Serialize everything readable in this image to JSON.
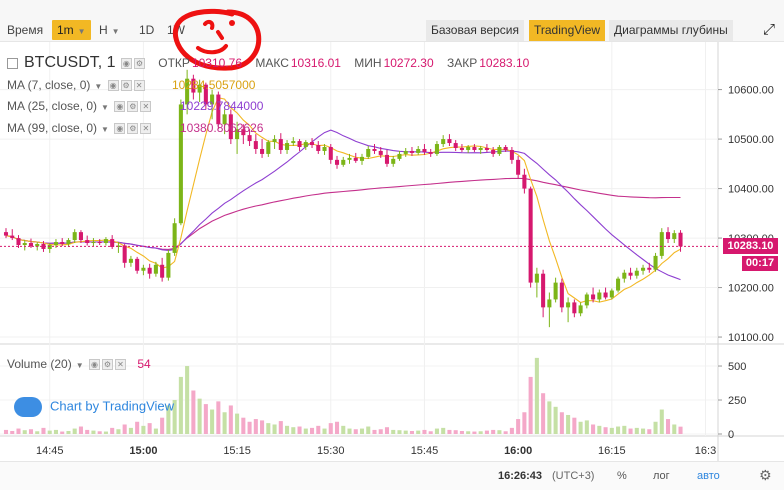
{
  "toolbar": {
    "time_label": "Время",
    "interval": "1m",
    "chart_style": "H",
    "range_1d": "1D",
    "range_1w": "1W",
    "basic_version": "Базовая версия",
    "tradingview": "TradingView",
    "depth_charts": "Диаграммы глубины"
  },
  "legend": {
    "symbol": "BTCUSDT, 1",
    "open_label": "ОТКР",
    "open_value": "10310.76",
    "high_label": "МАКС",
    "high_value": "10316.01",
    "low_label": "МИН",
    "low_value": "10272.30",
    "close_label": "ЗАКР",
    "close_value": "10283.10"
  },
  "ma": [
    {
      "label": "MA (7, close, 0)",
      "value": "10284.5057000",
      "color": "#f2b824"
    },
    {
      "label": "MA (25, close, 0)",
      "value": "10229.7844000",
      "color": "#8e3fd1"
    },
    {
      "label": "MA (99, close, 0)",
      "value": "10380.8062626",
      "color": "#c4308c"
    }
  ],
  "badges": {
    "price": "10283.10",
    "countdown": "00:17"
  },
  "volume_legend": {
    "label": "Volume (20)",
    "value": "54"
  },
  "watermark": "Chart by TradingView",
  "bottom": {
    "clock": "16:26:43",
    "timezone": "(UTC+3)",
    "percent": "%",
    "log": "лог",
    "auto": "авто"
  },
  "colors": {
    "up": "#7cb518",
    "down": "#d6186e",
    "vol_up": "#c5e0a5",
    "vol_down": "#f4a8c8"
  },
  "chart_data": {
    "type": "candlestick",
    "interval": "1m",
    "price_axis": {
      "ticks": [
        10100,
        10200,
        10300,
        10400,
        10500,
        10600
      ],
      "range": [
        10090,
        10680
      ]
    },
    "volume_axis": {
      "ticks": [
        0,
        250,
        500
      ],
      "range": [
        0,
        640
      ]
    },
    "time_axis": {
      "ticks": [
        "14:45",
        "15:00",
        "15:15",
        "15:30",
        "15:45",
        "16:00",
        "16:15",
        "16:3"
      ],
      "start": "14:38",
      "end": "16:32"
    },
    "last_price": 10283.1,
    "candles": [
      {
        "t": "14:38",
        "o": 10312,
        "h": 10320,
        "l": 10300,
        "c": 10305,
        "v": 30
      },
      {
        "t": "14:39",
        "o": 10305,
        "h": 10318,
        "l": 10296,
        "c": 10300,
        "v": 22
      },
      {
        "t": "14:40",
        "o": 10300,
        "h": 10306,
        "l": 10280,
        "c": 10286,
        "v": 40
      },
      {
        "t": "14:41",
        "o": 10286,
        "h": 10296,
        "l": 10275,
        "c": 10290,
        "v": 28
      },
      {
        "t": "14:42",
        "o": 10290,
        "h": 10299,
        "l": 10280,
        "c": 10283,
        "v": 35
      },
      {
        "t": "14:43",
        "o": 10283,
        "h": 10292,
        "l": 10275,
        "c": 10288,
        "v": 20
      },
      {
        "t": "14:44",
        "o": 10288,
        "h": 10294,
        "l": 10272,
        "c": 10278,
        "v": 45
      },
      {
        "t": "14:45",
        "o": 10278,
        "h": 10290,
        "l": 10270,
        "c": 10286,
        "v": 25
      },
      {
        "t": "14:46",
        "o": 10286,
        "h": 10298,
        "l": 10280,
        "c": 10292,
        "v": 30
      },
      {
        "t": "14:47",
        "o": 10292,
        "h": 10300,
        "l": 10284,
        "c": 10288,
        "v": 18
      },
      {
        "t": "14:48",
        "o": 10288,
        "h": 10300,
        "l": 10282,
        "c": 10296,
        "v": 22
      },
      {
        "t": "14:49",
        "o": 10296,
        "h": 10318,
        "l": 10290,
        "c": 10312,
        "v": 40
      },
      {
        "t": "14:50",
        "o": 10312,
        "h": 10316,
        "l": 10290,
        "c": 10296,
        "v": 55
      },
      {
        "t": "14:51",
        "o": 10296,
        "h": 10305,
        "l": 10285,
        "c": 10290,
        "v": 30
      },
      {
        "t": "14:52",
        "o": 10290,
        "h": 10300,
        "l": 10283,
        "c": 10292,
        "v": 25
      },
      {
        "t": "14:53",
        "o": 10292,
        "h": 10298,
        "l": 10286,
        "c": 10290,
        "v": 20
      },
      {
        "t": "14:54",
        "o": 10290,
        "h": 10302,
        "l": 10285,
        "c": 10298,
        "v": 18
      },
      {
        "t": "14:55",
        "o": 10298,
        "h": 10306,
        "l": 10278,
        "c": 10282,
        "v": 45
      },
      {
        "t": "14:56",
        "o": 10282,
        "h": 10292,
        "l": 10270,
        "c": 10285,
        "v": 35
      },
      {
        "t": "14:57",
        "o": 10285,
        "h": 10288,
        "l": 10240,
        "c": 10250,
        "v": 70
      },
      {
        "t": "14:58",
        "o": 10250,
        "h": 10264,
        "l": 10242,
        "c": 10258,
        "v": 45
      },
      {
        "t": "14:59",
        "o": 10258,
        "h": 10262,
        "l": 10228,
        "c": 10234,
        "v": 90
      },
      {
        "t": "15:00",
        "o": 10234,
        "h": 10246,
        "l": 10225,
        "c": 10240,
        "v": 60
      },
      {
        "t": "15:01",
        "o": 10240,
        "h": 10248,
        "l": 10218,
        "c": 10228,
        "v": 80
      },
      {
        "t": "15:02",
        "o": 10228,
        "h": 10252,
        "l": 10222,
        "c": 10246,
        "v": 40
      },
      {
        "t": "15:03",
        "o": 10246,
        "h": 10260,
        "l": 10212,
        "c": 10220,
        "v": 120
      },
      {
        "t": "15:04",
        "o": 10220,
        "h": 10276,
        "l": 10214,
        "c": 10270,
        "v": 210
      },
      {
        "t": "15:05",
        "o": 10270,
        "h": 10340,
        "l": 10264,
        "c": 10330,
        "v": 250
      },
      {
        "t": "15:06",
        "o": 10330,
        "h": 10580,
        "l": 10326,
        "c": 10570,
        "v": 420
      },
      {
        "t": "15:07",
        "o": 10570,
        "h": 10640,
        "l": 10550,
        "c": 10622,
        "v": 500
      },
      {
        "t": "15:08",
        "o": 10622,
        "h": 10630,
        "l": 10580,
        "c": 10594,
        "v": 320
      },
      {
        "t": "15:09",
        "o": 10594,
        "h": 10620,
        "l": 10575,
        "c": 10610,
        "v": 260
      },
      {
        "t": "15:10",
        "o": 10610,
        "h": 10614,
        "l": 10560,
        "c": 10570,
        "v": 220
      },
      {
        "t": "15:11",
        "o": 10570,
        "h": 10600,
        "l": 10540,
        "c": 10590,
        "v": 180
      },
      {
        "t": "15:12",
        "o": 10590,
        "h": 10596,
        "l": 10520,
        "c": 10530,
        "v": 240
      },
      {
        "t": "15:13",
        "o": 10530,
        "h": 10560,
        "l": 10510,
        "c": 10550,
        "v": 160
      },
      {
        "t": "15:14",
        "o": 10550,
        "h": 10560,
        "l": 10490,
        "c": 10500,
        "v": 210
      },
      {
        "t": "15:15",
        "o": 10500,
        "h": 10535,
        "l": 10470,
        "c": 10520,
        "v": 150
      },
      {
        "t": "15:16",
        "o": 10520,
        "h": 10530,
        "l": 10490,
        "c": 10508,
        "v": 120
      },
      {
        "t": "15:17",
        "o": 10508,
        "h": 10520,
        "l": 10486,
        "c": 10496,
        "v": 90
      },
      {
        "t": "15:18",
        "o": 10496,
        "h": 10510,
        "l": 10470,
        "c": 10480,
        "v": 110
      },
      {
        "t": "15:19",
        "o": 10480,
        "h": 10500,
        "l": 10462,
        "c": 10470,
        "v": 100
      },
      {
        "t": "15:20",
        "o": 10470,
        "h": 10498,
        "l": 10464,
        "c": 10494,
        "v": 80
      },
      {
        "t": "15:21",
        "o": 10494,
        "h": 10508,
        "l": 10480,
        "c": 10500,
        "v": 70
      },
      {
        "t": "15:22",
        "o": 10500,
        "h": 10512,
        "l": 10470,
        "c": 10478,
        "v": 95
      },
      {
        "t": "15:23",
        "o": 10478,
        "h": 10498,
        "l": 10470,
        "c": 10492,
        "v": 60
      },
      {
        "t": "15:24",
        "o": 10492,
        "h": 10504,
        "l": 10486,
        "c": 10496,
        "v": 50
      },
      {
        "t": "15:25",
        "o": 10496,
        "h": 10500,
        "l": 10476,
        "c": 10484,
        "v": 55
      },
      {
        "t": "15:26",
        "o": 10484,
        "h": 10498,
        "l": 10478,
        "c": 10494,
        "v": 40
      },
      {
        "t": "15:27",
        "o": 10494,
        "h": 10502,
        "l": 10482,
        "c": 10488,
        "v": 45
      },
      {
        "t": "15:28",
        "o": 10488,
        "h": 10496,
        "l": 10470,
        "c": 10476,
        "v": 60
      },
      {
        "t": "15:29",
        "o": 10476,
        "h": 10490,
        "l": 10468,
        "c": 10484,
        "v": 40
      },
      {
        "t": "15:30",
        "o": 10484,
        "h": 10490,
        "l": 10450,
        "c": 10458,
        "v": 80
      },
      {
        "t": "15:31",
        "o": 10458,
        "h": 10466,
        "l": 10440,
        "c": 10448,
        "v": 90
      },
      {
        "t": "15:32",
        "o": 10448,
        "h": 10464,
        "l": 10444,
        "c": 10458,
        "v": 60
      },
      {
        "t": "15:33",
        "o": 10458,
        "h": 10470,
        "l": 10450,
        "c": 10462,
        "v": 40
      },
      {
        "t": "15:34",
        "o": 10462,
        "h": 10472,
        "l": 10452,
        "c": 10456,
        "v": 35
      },
      {
        "t": "15:35",
        "o": 10456,
        "h": 10470,
        "l": 10448,
        "c": 10464,
        "v": 40
      },
      {
        "t": "15:36",
        "o": 10464,
        "h": 10486,
        "l": 10460,
        "c": 10480,
        "v": 55
      },
      {
        "t": "15:37",
        "o": 10480,
        "h": 10490,
        "l": 10470,
        "c": 10476,
        "v": 30
      },
      {
        "t": "15:38",
        "o": 10476,
        "h": 10484,
        "l": 10462,
        "c": 10468,
        "v": 35
      },
      {
        "t": "15:39",
        "o": 10468,
        "h": 10478,
        "l": 10444,
        "c": 10450,
        "v": 50
      },
      {
        "t": "15:40",
        "o": 10450,
        "h": 10466,
        "l": 10444,
        "c": 10460,
        "v": 30
      },
      {
        "t": "15:41",
        "o": 10460,
        "h": 10476,
        "l": 10456,
        "c": 10470,
        "v": 28
      },
      {
        "t": "15:42",
        "o": 10470,
        "h": 10482,
        "l": 10464,
        "c": 10476,
        "v": 25
      },
      {
        "t": "15:43",
        "o": 10476,
        "h": 10484,
        "l": 10466,
        "c": 10472,
        "v": 22
      },
      {
        "t": "15:44",
        "o": 10472,
        "h": 10486,
        "l": 10468,
        "c": 10480,
        "v": 25
      },
      {
        "t": "15:45",
        "o": 10480,
        "h": 10490,
        "l": 10468,
        "c": 10474,
        "v": 30
      },
      {
        "t": "15:46",
        "o": 10474,
        "h": 10480,
        "l": 10464,
        "c": 10470,
        "v": 20
      },
      {
        "t": "15:47",
        "o": 10470,
        "h": 10496,
        "l": 10466,
        "c": 10490,
        "v": 40
      },
      {
        "t": "15:48",
        "o": 10490,
        "h": 10508,
        "l": 10484,
        "c": 10500,
        "v": 45
      },
      {
        "t": "15:49",
        "o": 10500,
        "h": 10510,
        "l": 10486,
        "c": 10492,
        "v": 30
      },
      {
        "t": "15:50",
        "o": 10492,
        "h": 10498,
        "l": 10476,
        "c": 10482,
        "v": 28
      },
      {
        "t": "15:51",
        "o": 10482,
        "h": 10490,
        "l": 10474,
        "c": 10478,
        "v": 22
      },
      {
        "t": "15:52",
        "o": 10478,
        "h": 10488,
        "l": 10472,
        "c": 10484,
        "v": 20
      },
      {
        "t": "15:53",
        "o": 10484,
        "h": 10490,
        "l": 10474,
        "c": 10478,
        "v": 18
      },
      {
        "t": "15:54",
        "o": 10478,
        "h": 10486,
        "l": 10470,
        "c": 10482,
        "v": 20
      },
      {
        "t": "15:55",
        "o": 10482,
        "h": 10490,
        "l": 10474,
        "c": 10478,
        "v": 25
      },
      {
        "t": "15:56",
        "o": 10478,
        "h": 10484,
        "l": 10464,
        "c": 10470,
        "v": 30
      },
      {
        "t": "15:57",
        "o": 10470,
        "h": 10488,
        "l": 10466,
        "c": 10484,
        "v": 28
      },
      {
        "t": "15:58",
        "o": 10484,
        "h": 10488,
        "l": 10474,
        "c": 10478,
        "v": 20
      },
      {
        "t": "15:59",
        "o": 10478,
        "h": 10484,
        "l": 10450,
        "c": 10458,
        "v": 45
      },
      {
        "t": "16:00",
        "o": 10458,
        "h": 10466,
        "l": 10420,
        "c": 10428,
        "v": 110
      },
      {
        "t": "16:01",
        "o": 10428,
        "h": 10440,
        "l": 10390,
        "c": 10400,
        "v": 160
      },
      {
        "t": "16:02",
        "o": 10400,
        "h": 10404,
        "l": 10200,
        "c": 10210,
        "v": 420
      },
      {
        "t": "16:03",
        "o": 10210,
        "h": 10240,
        "l": 10180,
        "c": 10228,
        "v": 560
      },
      {
        "t": "16:04",
        "o": 10228,
        "h": 10236,
        "l": 10140,
        "c": 10160,
        "v": 300
      },
      {
        "t": "16:05",
        "o": 10160,
        "h": 10190,
        "l": 10120,
        "c": 10176,
        "v": 240
      },
      {
        "t": "16:06",
        "o": 10176,
        "h": 10220,
        "l": 10170,
        "c": 10210,
        "v": 200
      },
      {
        "t": "16:07",
        "o": 10210,
        "h": 10218,
        "l": 10150,
        "c": 10160,
        "v": 160
      },
      {
        "t": "16:08",
        "o": 10160,
        "h": 10180,
        "l": 10130,
        "c": 10170,
        "v": 140
      },
      {
        "t": "16:09",
        "o": 10170,
        "h": 10176,
        "l": 10140,
        "c": 10148,
        "v": 120
      },
      {
        "t": "16:10",
        "o": 10148,
        "h": 10170,
        "l": 10142,
        "c": 10164,
        "v": 90
      },
      {
        "t": "16:11",
        "o": 10164,
        "h": 10190,
        "l": 10158,
        "c": 10186,
        "v": 100
      },
      {
        "t": "16:12",
        "o": 10186,
        "h": 10200,
        "l": 10170,
        "c": 10176,
        "v": 70
      },
      {
        "t": "16:13",
        "o": 10176,
        "h": 10196,
        "l": 10170,
        "c": 10190,
        "v": 60
      },
      {
        "t": "16:14",
        "o": 10190,
        "h": 10200,
        "l": 10176,
        "c": 10180,
        "v": 50
      },
      {
        "t": "16:15",
        "o": 10180,
        "h": 10198,
        "l": 10176,
        "c": 10194,
        "v": 45
      },
      {
        "t": "16:16",
        "o": 10194,
        "h": 10222,
        "l": 10190,
        "c": 10218,
        "v": 55
      },
      {
        "t": "16:17",
        "o": 10218,
        "h": 10236,
        "l": 10210,
        "c": 10230,
        "v": 60
      },
      {
        "t": "16:18",
        "o": 10230,
        "h": 10240,
        "l": 10216,
        "c": 10224,
        "v": 40
      },
      {
        "t": "16:19",
        "o": 10224,
        "h": 10240,
        "l": 10218,
        "c": 10234,
        "v": 45
      },
      {
        "t": "16:20",
        "o": 10234,
        "h": 10246,
        "l": 10226,
        "c": 10240,
        "v": 40
      },
      {
        "t": "16:21",
        "o": 10240,
        "h": 10250,
        "l": 10230,
        "c": 10236,
        "v": 35
      },
      {
        "t": "16:22",
        "o": 10236,
        "h": 10270,
        "l": 10232,
        "c": 10264,
        "v": 90
      },
      {
        "t": "16:23",
        "o": 10264,
        "h": 10320,
        "l": 10258,
        "c": 10312,
        "v": 180
      },
      {
        "t": "16:24",
        "o": 10312,
        "h": 10322,
        "l": 10290,
        "c": 10298,
        "v": 110
      },
      {
        "t": "16:25",
        "o": 10298,
        "h": 10316,
        "l": 10290,
        "c": 10310,
        "v": 70
      },
      {
        "t": "16:26",
        "o": 10310.76,
        "h": 10316.01,
        "l": 10272.3,
        "c": 10283.1,
        "v": 54
      }
    ]
  }
}
